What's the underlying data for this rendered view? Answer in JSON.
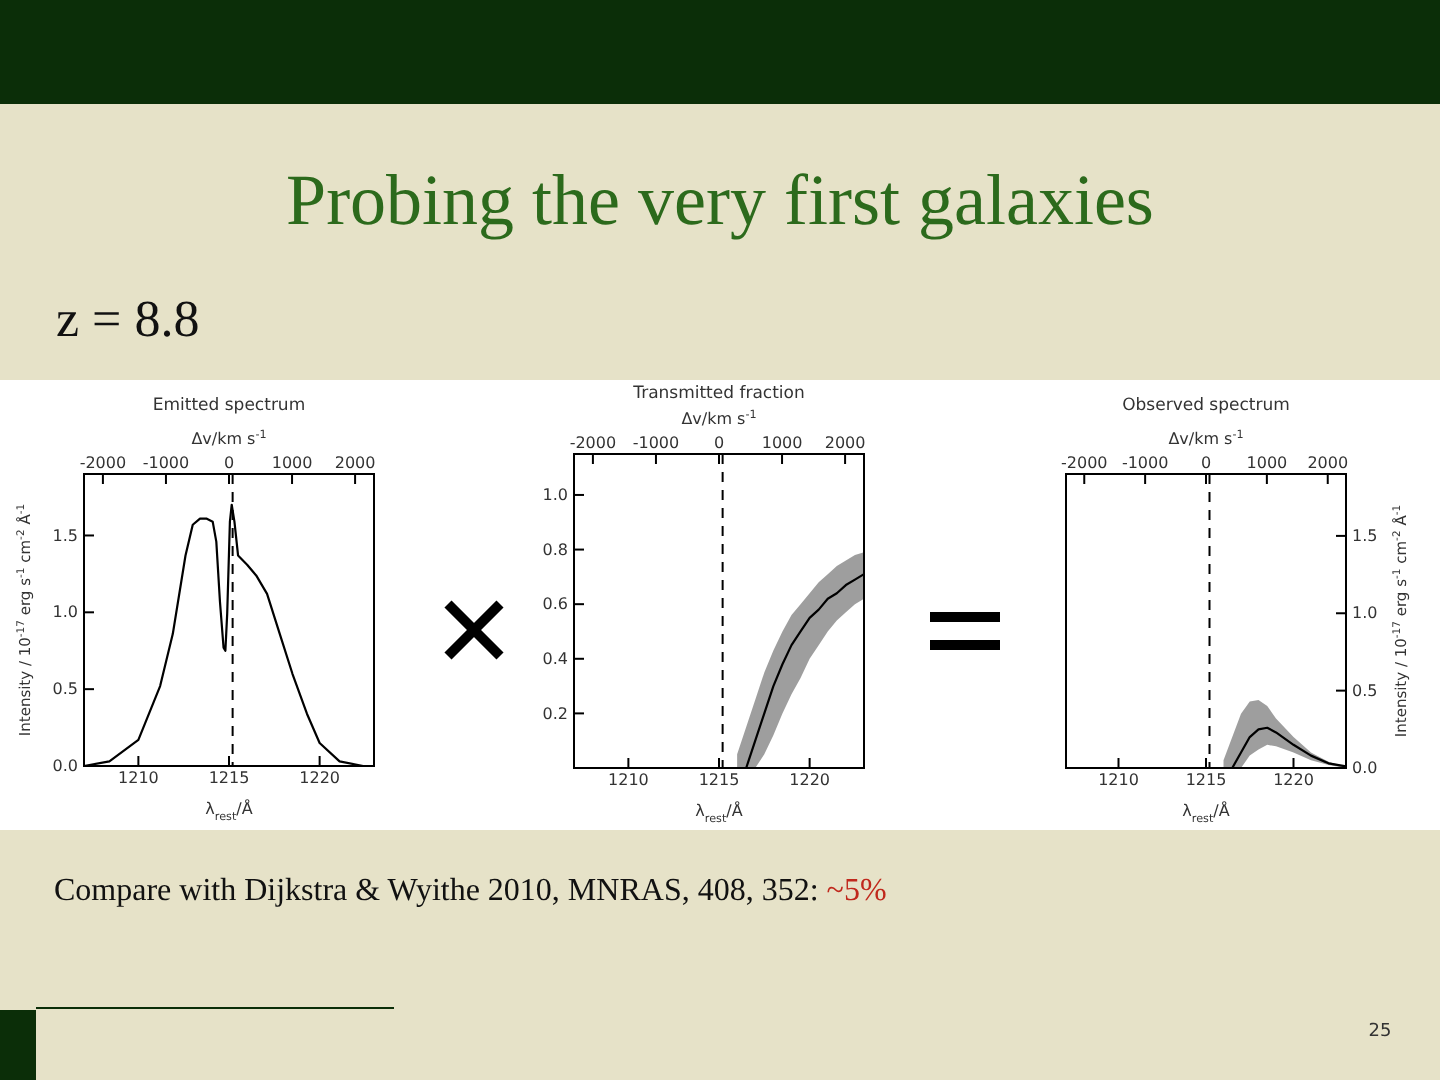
{
  "chart_data": [
    {
      "type": "other",
      "title": "Probing the very first galaxies",
      "subtitle": "z = 8.8",
      "annotations": [
        "Compare with Dijkstra & Wyithe 2010, MNRAS, 408, 352: ~5%",
        "25"
      ]
    },
    {
      "type": "line",
      "title": "Emitted spectrum",
      "xlabel": "λ$_{rest}$/Å",
      "x2label": "Δv/km s$^{-1}$",
      "ylabel": "Intensity / 10$^{-17}$ erg s$^{-1}$ cm$^{-2}$ Å$^{-1}$",
      "xlim": [
        1207,
        1223
      ],
      "xticks": [
        1210,
        1215,
        1220
      ],
      "x2lim": [
        -2300,
        2300
      ],
      "x2ticks": [
        -2000,
        -1000,
        0,
        1000,
        2000
      ],
      "ylim": [
        0,
        1.9
      ],
      "yticks": [
        {
          "value": 0,
          "label": "0.0"
        },
        {
          "value": 0.5,
          "label": "0.5"
        },
        {
          "value": 1,
          "label": "1.0"
        },
        {
          "value": 1.5,
          "label": "1.5"
        }
      ],
      "ref_lines": [
        {
          "axis": "x",
          "value": 1215.2,
          "line_style": "dashed",
          "color": "#000000"
        }
      ],
      "series": [
        {
          "color": "#000000",
          "x": [
            1207,
            1208.4,
            1210,
            1211.2,
            1211.9,
            1212.6,
            1213,
            1213.4,
            1213.75,
            1214.1,
            1214.3,
            1214.5,
            1214.7,
            1214.8,
            1214.9,
            1215.05,
            1215.15,
            1215.3,
            1215.5,
            1216,
            1216.5,
            1217.1,
            1217.8,
            1218.5,
            1219.3,
            1220,
            1221.1,
            1222.4
          ],
          "values": [
            0,
            0.03,
            0.17,
            0.52,
            0.86,
            1.37,
            1.57,
            1.61,
            1.61,
            1.59,
            1.46,
            1.07,
            0.77,
            0.75,
            0.99,
            1.59,
            1.7,
            1.59,
            1.37,
            1.31,
            1.24,
            1.12,
            0.86,
            0.6,
            0.34,
            0.15,
            0.03,
            0
          ]
        }
      ]
    },
    {
      "type": "line",
      "title": "Transmitted fraction",
      "xlabel": "λ$_{rest}$/Å",
      "x2label": "Δv/km s$^{-1}$",
      "xlim": [
        1207,
        1223
      ],
      "xticks": [
        1210,
        1215,
        1220
      ],
      "x2lim": [
        -2300,
        2300
      ],
      "x2ticks": [
        -2000,
        -1000,
        0,
        1000,
        2000
      ],
      "ylim": [
        0,
        1.15
      ],
      "yticks": [
        0.2,
        0.4,
        0.6,
        0.8,
        {
          "value": 1,
          "label": "1.0"
        }
      ],
      "ref_lines": [
        {
          "axis": "x",
          "value": 1215.2,
          "line_style": "dashed",
          "color": "#000000"
        }
      ],
      "series": [
        {
          "color": "#000000",
          "x": [
            1216,
            1216.5,
            1217,
            1217.5,
            1218,
            1218.5,
            1219,
            1219.5,
            1220,
            1220.5,
            1221,
            1221.5,
            1222,
            1222.5,
            1223
          ],
          "values": [
            null,
            0,
            0.1,
            0.2,
            0.3,
            0.38,
            0.45,
            0.5,
            0.55,
            0.58,
            0.62,
            0.64,
            0.67,
            0.69,
            0.71
          ],
          "lower": [
            0,
            0,
            0,
            0.05,
            0.12,
            0.2,
            0.27,
            0.33,
            0.4,
            0.45,
            0.5,
            0.54,
            0.57,
            0.6,
            0.62
          ],
          "upper": [
            0.05,
            0.15,
            0.25,
            0.35,
            0.43,
            0.5,
            0.56,
            0.6,
            0.64,
            0.68,
            0.71,
            0.74,
            0.76,
            0.78,
            0.79
          ]
        }
      ]
    },
    {
      "type": "line",
      "title": "Observed spectrum",
      "xlabel": "λ$_{rest}$/Å",
      "x2label": "Δv/km s$^{-1}$",
      "y2label": "Intensity / 10$^{-17}$ erg s$^{-1}$ cm$^{-2}$ Å$^{-1}$",
      "xlim": [
        1207,
        1223
      ],
      "xticks": [
        1210,
        1215,
        1220
      ],
      "x2lim": [
        -2300,
        2300
      ],
      "x2ticks": [
        -2000,
        -1000,
        0,
        1000,
        2000
      ],
      "y2lim": [
        0,
        1.9
      ],
      "y2ticks": [
        {
          "value": 0,
          "label": "0.0"
        },
        {
          "value": 0.5,
          "label": "0.5"
        },
        {
          "value": 1,
          "label": "1.0"
        },
        {
          "value": 1.5,
          "label": "1.5"
        }
      ],
      "ref_lines": [
        {
          "axis": "x",
          "value": 1215.2,
          "line_style": "dashed",
          "color": "#000000"
        }
      ],
      "series": [
        {
          "color": "#000000",
          "axis": "y2",
          "x": [
            1216,
            1216.5,
            1217,
            1217.5,
            1218,
            1218.5,
            1219,
            1220,
            1221,
            1222,
            1223
          ],
          "values": [
            null,
            0,
            0.1,
            0.2,
            0.25,
            0.26,
            0.23,
            0.15,
            0.08,
            0.03,
            0.01
          ],
          "lower": [
            0,
            0,
            0,
            0.08,
            0.12,
            0.15,
            0.14,
            0.1,
            0.05,
            0.02,
            0
          ],
          "upper": [
            0.05,
            0.2,
            0.35,
            0.43,
            0.44,
            0.4,
            0.32,
            0.2,
            0.1,
            0.04,
            0.01
          ]
        }
      ]
    }
  ]
}
